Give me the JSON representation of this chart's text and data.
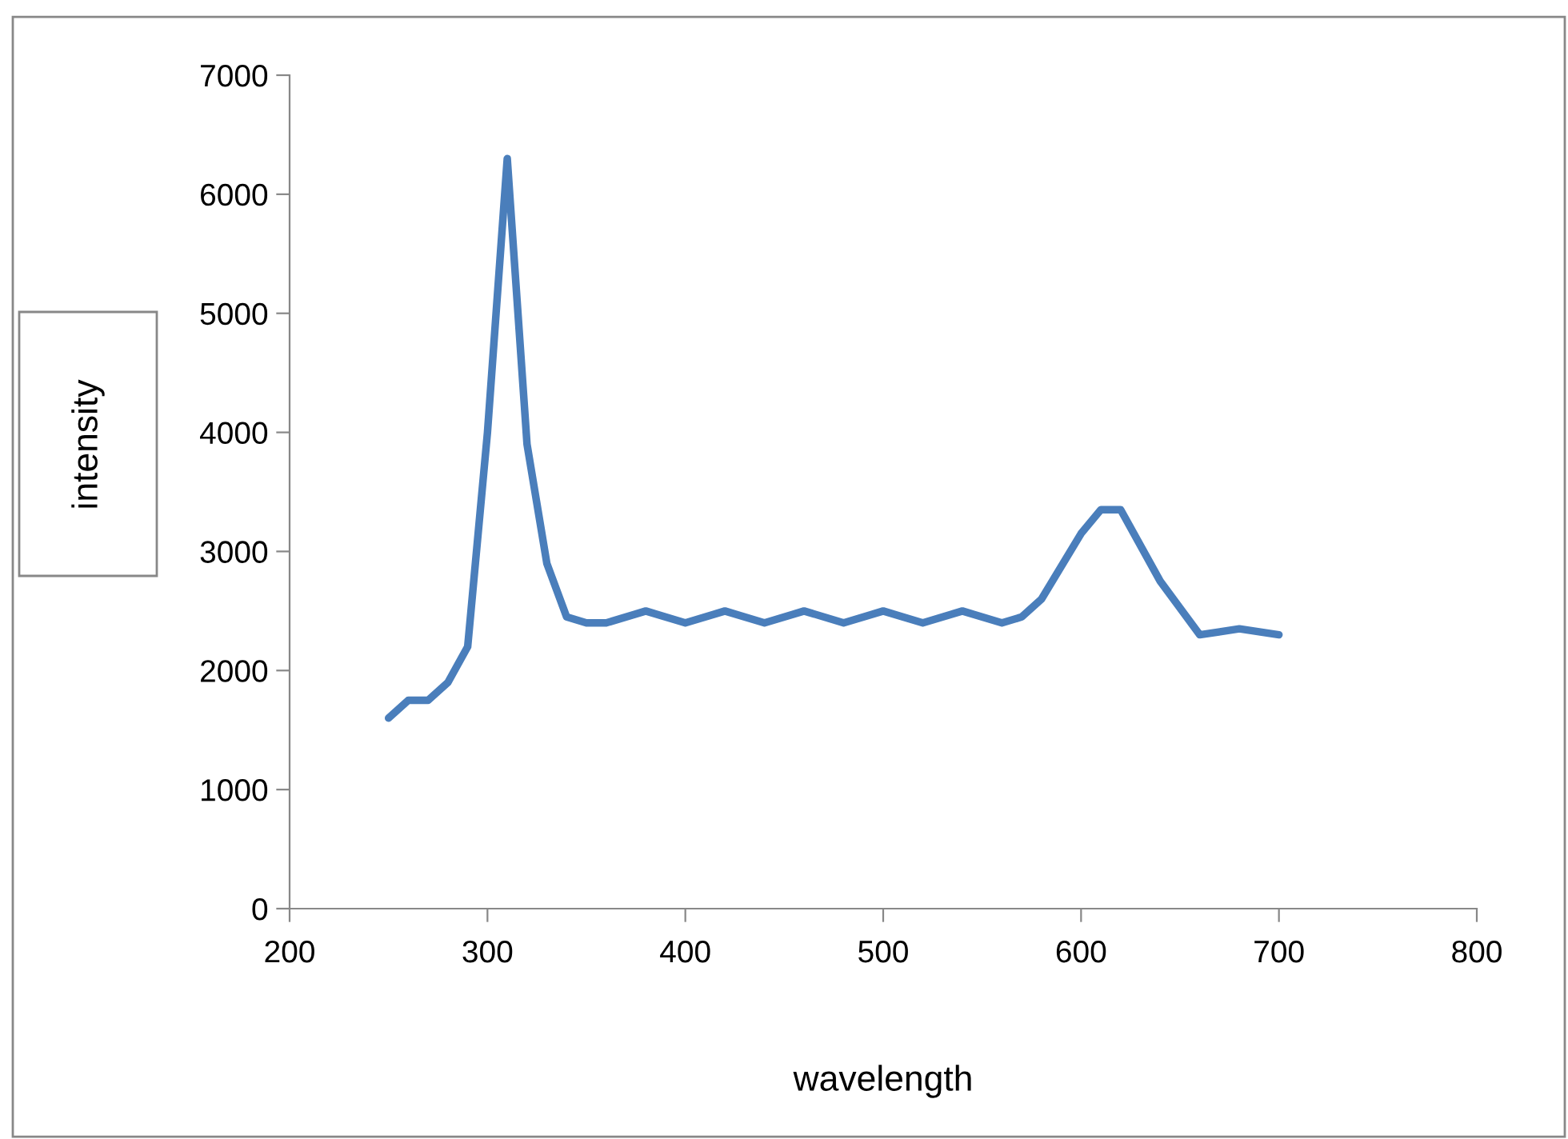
{
  "chart_data": {
    "type": "line",
    "xlabel": "wavelength",
    "ylabel": "intensity",
    "xlim": [
      200,
      800
    ],
    "xticks": [
      200,
      300,
      400,
      500,
      600,
      700,
      800
    ],
    "ylim": [
      0,
      7000
    ],
    "yticks": [
      0,
      1000,
      2000,
      3000,
      4000,
      5000,
      6000,
      7000
    ],
    "grid": false,
    "legend": false,
    "marker": "none",
    "line_style": "solid",
    "series": [
      {
        "color": "#4a7ebb",
        "x": [
          250,
          260,
          270,
          280,
          290,
          300,
          310,
          320,
          330,
          340,
          350,
          360,
          380,
          400,
          420,
          440,
          460,
          480,
          500,
          520,
          540,
          560,
          570,
          580,
          600,
          610,
          620,
          640,
          660,
          680,
          700
        ],
        "values": [
          1600,
          1750,
          1750,
          1900,
          2200,
          4000,
          6300,
          3900,
          2900,
          2450,
          2400,
          2400,
          2500,
          2400,
          2500,
          2400,
          2500,
          2400,
          2500,
          2400,
          2500,
          2400,
          2450,
          2600,
          3150,
          3350,
          3350,
          2750,
          2300,
          2350,
          2300
        ]
      }
    ]
  }
}
